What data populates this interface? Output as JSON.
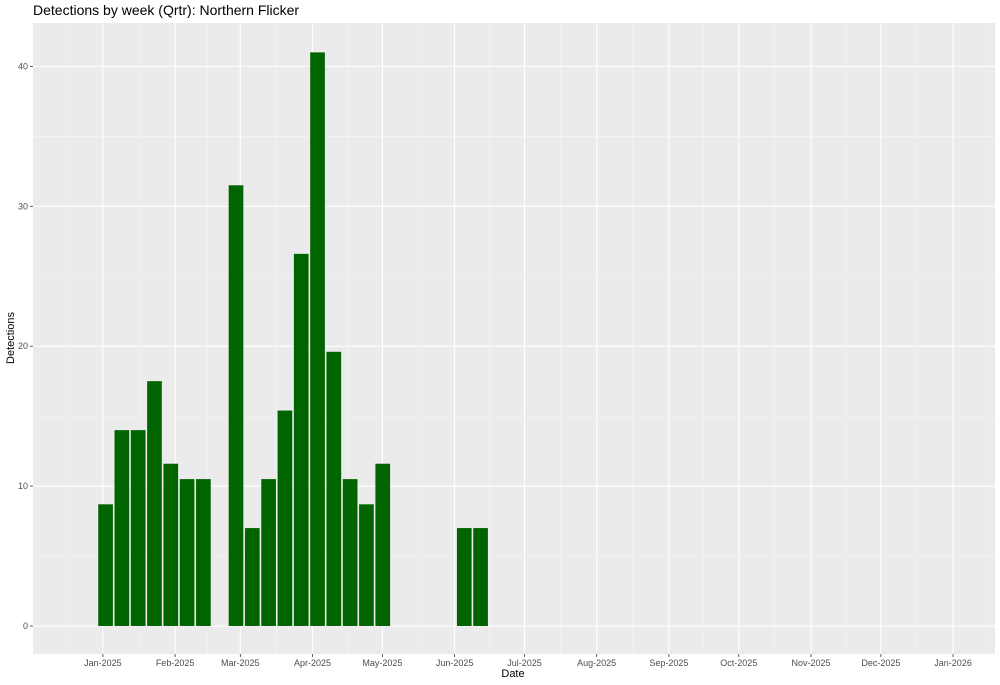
{
  "chart_data": {
    "type": "bar",
    "title": "Detections by week (Qrtr): Northern Flicker",
    "xlabel": "Date",
    "ylabel": "Detections",
    "x_ticks": [
      "Jan-2025",
      "Feb-2025",
      "Mar-2025",
      "Apr-2025",
      "May-2025",
      "Jun-2025",
      "Jul-2025",
      "Aug-2025",
      "Sep-2025",
      "Oct-2025",
      "Nov-2025",
      "Dec-2025",
      "Jan-2026"
    ],
    "y_ticks": [
      "0",
      "10",
      "20",
      "30",
      "40"
    ],
    "ylim": [
      -2.0,
      43.1
    ],
    "xlim": [
      "2024-12-02",
      "2026-01-19"
    ],
    "grid": true,
    "colors": {
      "bar": "#006400",
      "panel": "#ebebeb",
      "grid_major": "#ffffff",
      "grid_minor": "#f5f5f5"
    },
    "series": [
      {
        "weeks": [
          "2024-12-30",
          "2025-01-06",
          "2025-01-13",
          "2025-01-20",
          "2025-01-27",
          "2025-02-03",
          "2025-02-10",
          "2025-02-24",
          "2025-03-03",
          "2025-03-10",
          "2025-03-17",
          "2025-03-24",
          "2025-03-31",
          "2025-04-07",
          "2025-04-14",
          "2025-04-21",
          "2025-04-28",
          "2025-06-02",
          "2025-06-09"
        ],
        "values": [
          8.7,
          14.0,
          14.0,
          17.5,
          11.6,
          10.5,
          10.5,
          31.5,
          7.0,
          10.5,
          15.4,
          26.6,
          41.0,
          19.6,
          10.5,
          8.7,
          11.6,
          7.0,
          7.0
        ]
      }
    ]
  }
}
